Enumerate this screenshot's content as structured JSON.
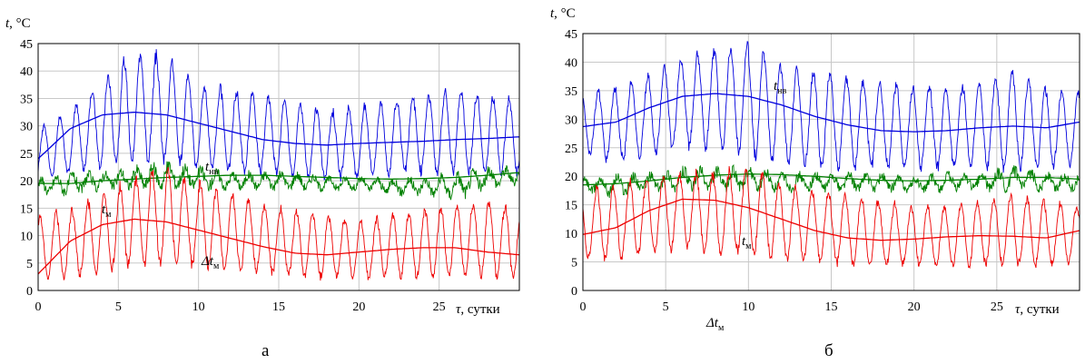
{
  "chart_data": [
    {
      "type": "line",
      "caption": "а",
      "xlabel_symbol": "τ",
      "xlabel_unit": ", сутки",
      "ylabel_symbol": "t",
      "ylabel_unit": ", °C",
      "xlim": [
        0,
        30
      ],
      "ylim": [
        0,
        45
      ],
      "xticks": [
        "0",
        "5",
        "10",
        "15",
        "20",
        "25"
      ],
      "yticks": [
        "0",
        "5",
        "10",
        "15",
        "20",
        "25",
        "30",
        "35",
        "40",
        "45"
      ],
      "grid": true,
      "annotations": [
        {
          "symbol": "t",
          "sub": "нв",
          "color": "#000000"
        },
        {
          "symbol": "t",
          "sub": "м",
          "color": "#000000"
        },
        {
          "symbol": "Δt",
          "sub": "м",
          "color": "#000000"
        }
      ],
      "series": [
        {
          "id": "tnv",
          "color": "#0000dd",
          "trend": {
            "x": [
              0,
              2,
              4,
              6,
              8,
              10,
              12,
              14,
              16,
              18,
              20,
              22,
              24,
              26,
              28,
              30
            ],
            "y": [
              24,
              29.5,
              32,
              32.5,
              32,
              30.5,
              29,
              27.5,
              26.8,
              26.5,
              26.8,
              27,
              27.2,
              27.5,
              27.7,
              28
            ]
          },
          "envelope": {
            "x": [
              0,
              2,
              4,
              6,
              8,
              10,
              12,
              14,
              16,
              18,
              20,
              22,
              24,
              26,
              28,
              30
            ],
            "max": [
              30,
              33,
              39,
              44,
              43,
              38,
              37,
              36,
              35,
              33,
              34,
              35,
              36,
              37,
              36,
              35
            ],
            "min": [
              20,
              21,
              22,
              23,
              23,
              22,
              21,
              21,
              20,
              20,
              20,
              21,
              21,
              21,
              21,
              21
            ]
          }
        },
        {
          "id": "tm",
          "color": "#008000",
          "trend": {
            "x": [
              0,
              2,
              4,
              6,
              8,
              10,
              12,
              14,
              16,
              18,
              20,
              22,
              24,
              26,
              28,
              30
            ],
            "y": [
              19.5,
              19.5,
              20,
              20.3,
              20.6,
              20.8,
              21,
              21,
              20.8,
              20.6,
              20.4,
              20.3,
              20.4,
              20.6,
              21,
              21.5
            ]
          },
          "envelope": {
            "x": [
              0,
              2,
              4,
              6,
              8,
              10,
              12,
              14,
              16,
              18,
              20,
              22,
              24,
              26,
              28,
              30
            ],
            "max": [
              21,
              22,
              22,
              23,
              24,
              23,
              22,
              22,
              22,
              21,
              21,
              21,
              21,
              22,
              23,
              23
            ],
            "min": [
              17,
              17,
              18,
              18,
              18,
              18,
              18,
              18,
              18,
              18,
              18,
              17,
              17,
              16,
              18,
              19
            ]
          }
        },
        {
          "id": "dtm",
          "color": "#ee0000",
          "trend": {
            "x": [
              0,
              2,
              4,
              6,
              8,
              10,
              12,
              14,
              16,
              18,
              20,
              22,
              24,
              26,
              28,
              30
            ],
            "y": [
              3,
              9,
              12,
              13,
              12.5,
              11,
              9.5,
              8,
              6.8,
              6.5,
              7,
              7.5,
              7.8,
              7.8,
              7,
              6.5
            ]
          },
          "envelope": {
            "x": [
              0,
              2,
              4,
              6,
              8,
              10,
              12,
              14,
              16,
              18,
              20,
              22,
              24,
              26,
              28,
              30
            ],
            "max": [
              14,
              15,
              18,
              21,
              23,
              20,
              18,
              16,
              15,
              14,
              13,
              14,
              15,
              16,
              17,
              15
            ],
            "min": [
              2,
              2,
              3,
              4,
              4,
              4,
              3,
              3,
              2,
              2,
              2,
              2,
              2,
              2,
              2,
              2
            ]
          }
        }
      ]
    },
    {
      "type": "line",
      "caption": "б",
      "xlabel_symbol": "τ",
      "xlabel_unit": ", сутки",
      "ylabel_symbol": "t",
      "ylabel_unit": ", °C",
      "xlim": [
        0,
        30
      ],
      "ylim": [
        0,
        45
      ],
      "xticks": [
        "0",
        "5",
        "10",
        "15",
        "20",
        "25"
      ],
      "yticks": [
        "0",
        "5",
        "10",
        "15",
        "20",
        "25",
        "30",
        "35",
        "40",
        "45"
      ],
      "grid": true,
      "annotations": [
        {
          "symbol": "t",
          "sub": "нв",
          "color": "#000000"
        },
        {
          "symbol": "t",
          "sub": "м",
          "color": "#000000"
        },
        {
          "symbol": "Δt",
          "sub": "м",
          "color": "#000000"
        }
      ],
      "series": [
        {
          "id": "tnv",
          "color": "#0000dd",
          "trend": {
            "x": [
              0,
              2,
              4,
              6,
              8,
              10,
              12,
              14,
              16,
              18,
              20,
              22,
              24,
              26,
              28,
              30
            ],
            "y": [
              28.7,
              29.5,
              32,
              34,
              34.5,
              34,
              32.5,
              30.5,
              29,
              28,
              27.8,
              28,
              28.5,
              28.8,
              28.5,
              29.5
            ]
          },
          "envelope": {
            "x": [
              0,
              2,
              4,
              6,
              8,
              10,
              12,
              14,
              16,
              18,
              20,
              22,
              24,
              26,
              28,
              30
            ],
            "max": [
              35,
              36,
              38,
              41,
              43,
              44,
              40,
              39,
              38,
              37,
              36,
              36,
              37,
              39,
              36,
              35
            ],
            "min": [
              24,
              22,
              23,
              25,
              24,
              23,
              22,
              21,
              21,
              21,
              21,
              21,
              21,
              21,
              21,
              22
            ]
          }
        },
        {
          "id": "tm",
          "color": "#008000",
          "trend": {
            "x": [
              0,
              2,
              4,
              6,
              8,
              10,
              12,
              14,
              16,
              18,
              20,
              22,
              24,
              26,
              28,
              30
            ],
            "y": [
              18.5,
              18.7,
              19.2,
              19.8,
              20.2,
              20.4,
              20.3,
              20,
              19.6,
              19.3,
              19.2,
              19.3,
              19.5,
              19.8,
              19.8,
              19.5
            ]
          },
          "envelope": {
            "x": [
              0,
              2,
              4,
              6,
              8,
              10,
              12,
              14,
              16,
              18,
              20,
              22,
              24,
              26,
              28,
              30
            ],
            "max": [
              20,
              21,
              21,
              22,
              22,
              22,
              21,
              21,
              21,
              21,
              20,
              21,
              21,
              22,
              21,
              21
            ],
            "min": [
              17,
              16,
              17,
              17,
              17,
              17,
              17,
              17,
              17,
              17,
              17,
              17,
              17,
              17,
              17,
              17
            ]
          }
        },
        {
          "id": "dtm",
          "color": "#ee0000",
          "trend": {
            "x": [
              0,
              2,
              4,
              6,
              8,
              10,
              12,
              14,
              16,
              18,
              20,
              22,
              24,
              26,
              28,
              30
            ],
            "y": [
              9.8,
              11,
              14,
              16,
              15.8,
              14.5,
              12.5,
              10.5,
              9.2,
              8.8,
              9,
              9.4,
              9.6,
              9.5,
              9.2,
              10.5
            ]
          },
          "envelope": {
            "x": [
              0,
              2,
              4,
              6,
              8,
              10,
              12,
              14,
              16,
              18,
              20,
              22,
              24,
              26,
              28,
              30
            ],
            "max": [
              18,
              19,
              20,
              21,
              21,
              22,
              19,
              18,
              17,
              16,
              15,
              15,
              16,
              17,
              16,
              15
            ],
            "min": [
              5,
              5,
              6,
              7,
              6,
              6,
              5,
              5,
              4,
              4,
              4,
              4,
              4,
              4,
              4,
              5
            ]
          }
        }
      ]
    }
  ]
}
